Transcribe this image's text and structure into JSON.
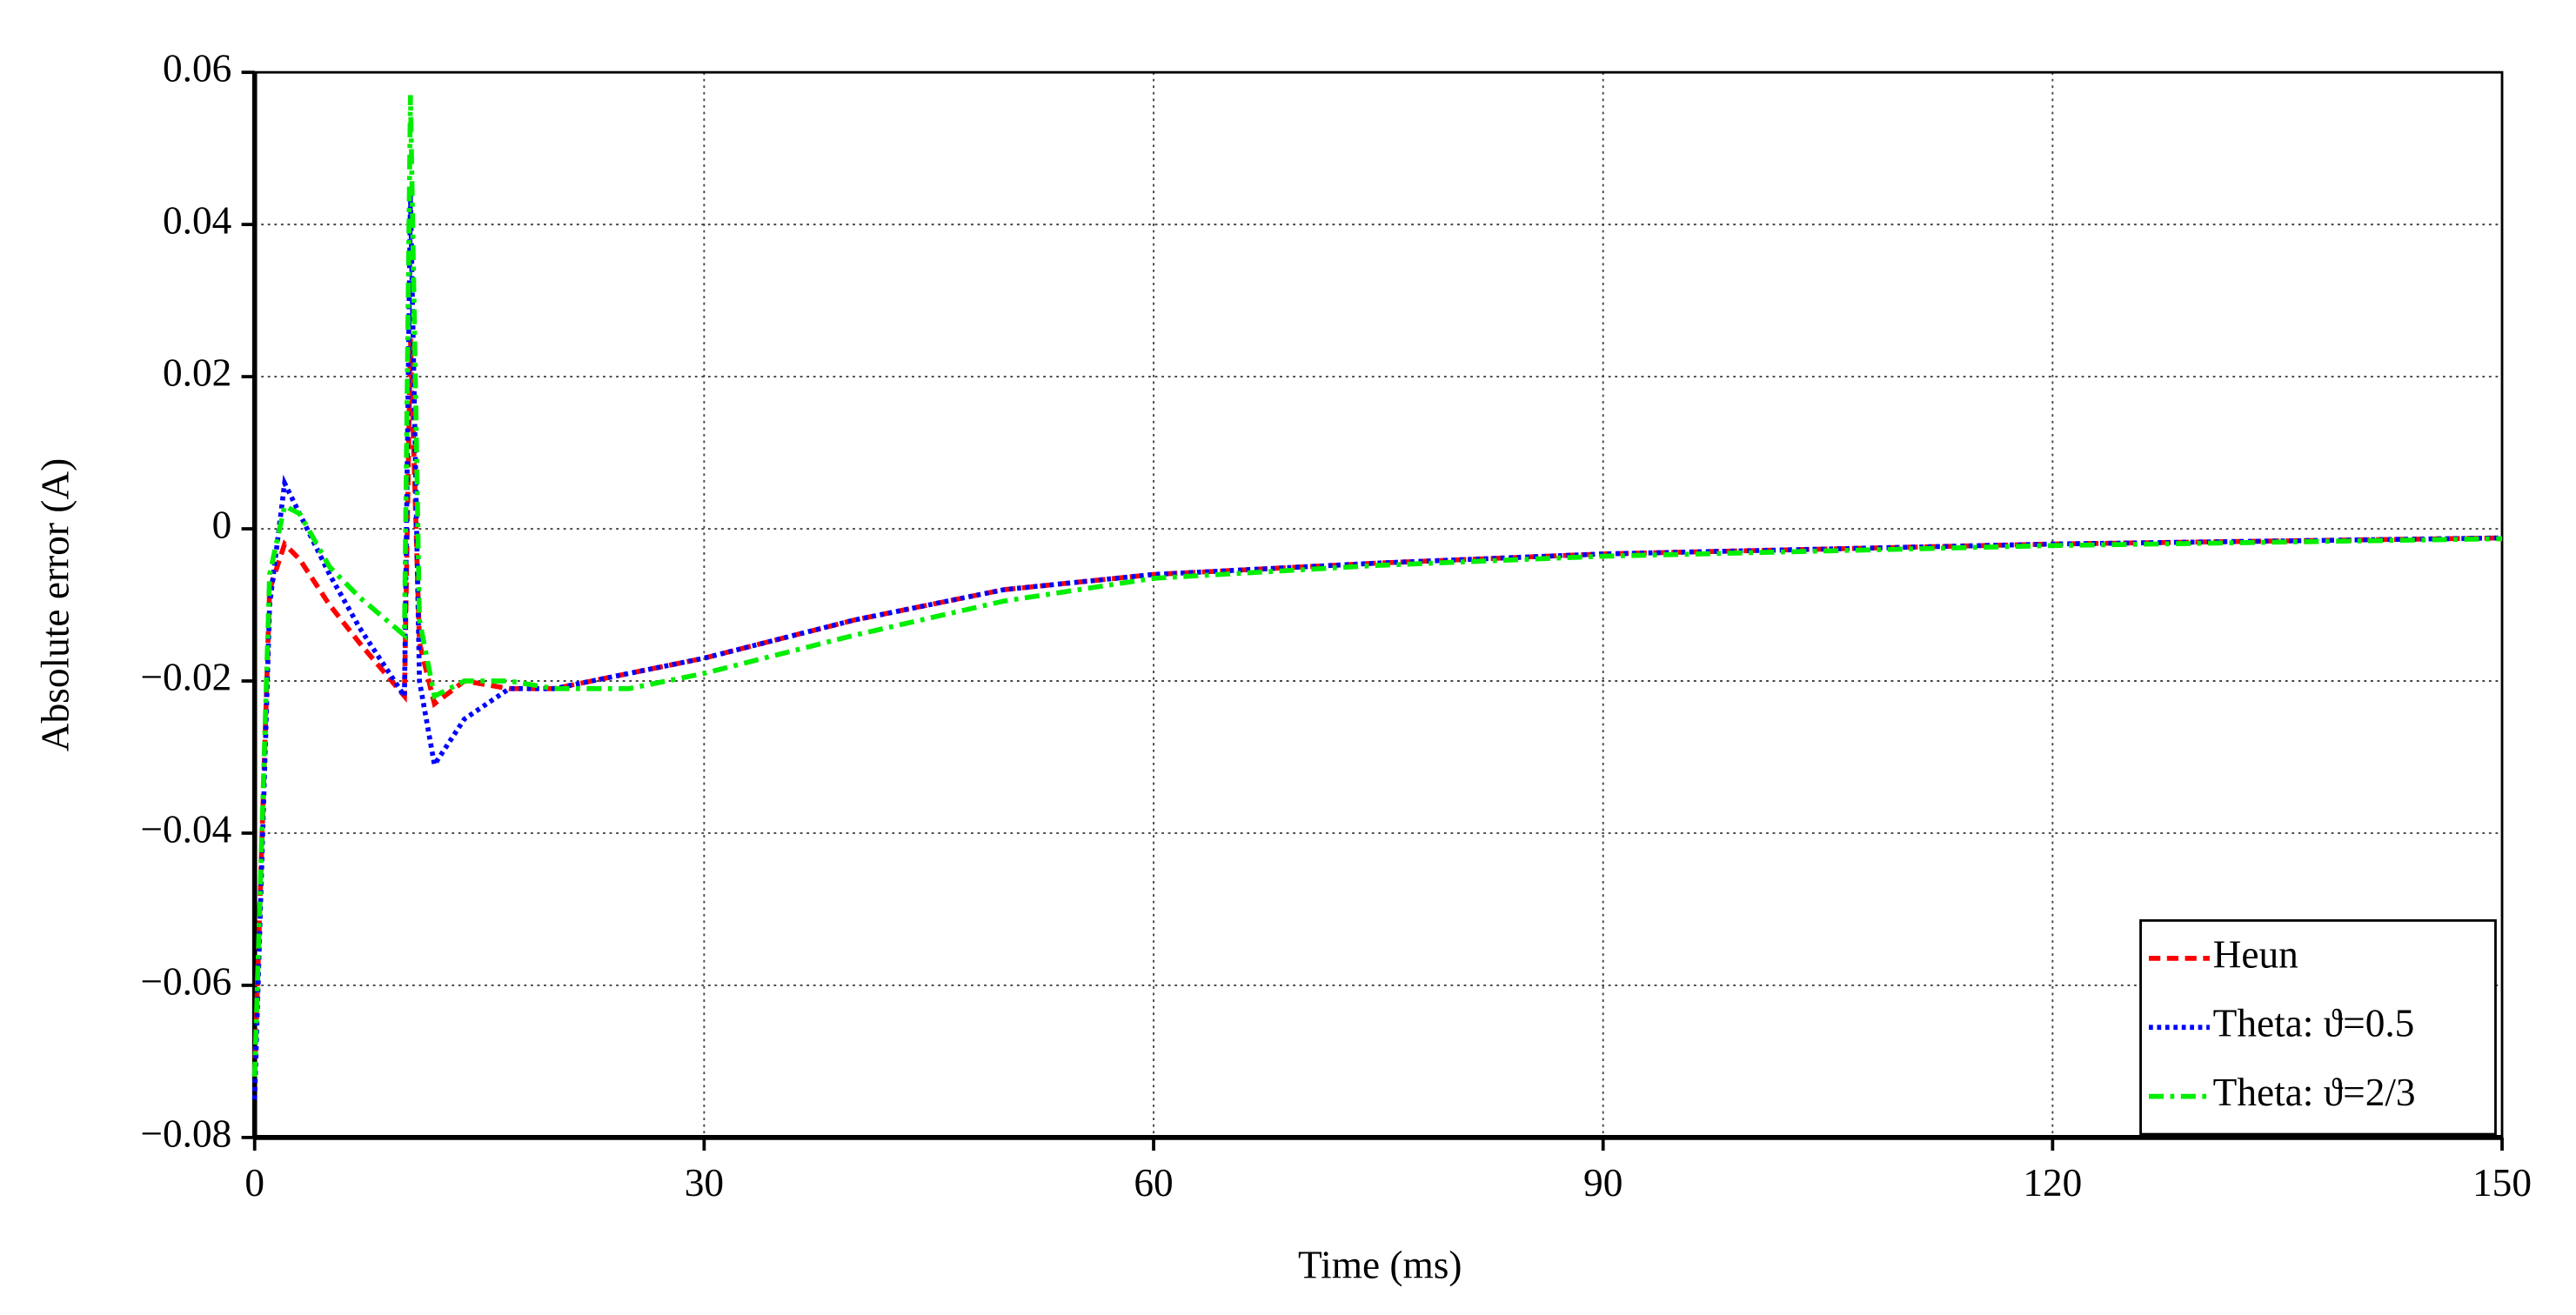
{
  "chart_data": {
    "type": "line",
    "x_label": "Time (ms)",
    "y_label": "Absolute error (A)",
    "x": [
      0,
      1,
      2,
      3,
      5,
      7,
      10,
      10.4,
      11,
      12,
      14,
      17,
      20,
      25,
      30,
      40,
      50,
      60,
      75,
      90,
      120,
      150
    ],
    "series": [
      {
        "name": "Heun",
        "color": "#ff0000",
        "dash": "dashed",
        "values": [
          -0.072,
          -0.008,
          -0.002,
          -0.004,
          -0.01,
          -0.015,
          -0.022,
          0.025,
          -0.015,
          -0.023,
          -0.02,
          -0.021,
          -0.021,
          -0.019,
          -0.017,
          -0.012,
          -0.008,
          -0.006,
          -0.0045,
          -0.0033,
          -0.002,
          -0.0012
        ]
      },
      {
        "name": "Theta: ϑ=0.5",
        "color": "#0000ff",
        "dash": "dotted",
        "values": [
          -0.075,
          -0.01,
          0.006,
          0.002,
          -0.006,
          -0.013,
          -0.022,
          0.044,
          -0.02,
          -0.031,
          -0.025,
          -0.021,
          -0.021,
          -0.019,
          -0.017,
          -0.012,
          -0.008,
          -0.006,
          -0.0045,
          -0.0033,
          -0.002,
          -0.0012
        ]
      },
      {
        "name": "Theta: ϑ=2/3",
        "color": "#00ee00",
        "dash": "dashdot",
        "values": [
          -0.072,
          -0.006,
          0.003,
          0.002,
          -0.005,
          -0.009,
          -0.014,
          0.057,
          -0.012,
          -0.022,
          -0.02,
          -0.02,
          -0.021,
          -0.021,
          -0.019,
          -0.014,
          -0.0095,
          -0.0065,
          -0.0048,
          -0.0036,
          -0.0022,
          -0.0013
        ]
      }
    ],
    "xlim": [
      0,
      150
    ],
    "xticks": [
      0,
      30,
      60,
      90,
      120,
      150
    ],
    "ylim": [
      -0.08,
      0.06
    ],
    "yticks": [
      {
        "value": -0.08,
        "label": "−0.08"
      },
      {
        "value": -0.06,
        "label": "−0.06"
      },
      {
        "value": -0.04,
        "label": "−0.04"
      },
      {
        "value": -0.02,
        "label": "−0.02"
      },
      0,
      0.02,
      0.04,
      0.06
    ],
    "grid": true,
    "legend": "lower right"
  }
}
